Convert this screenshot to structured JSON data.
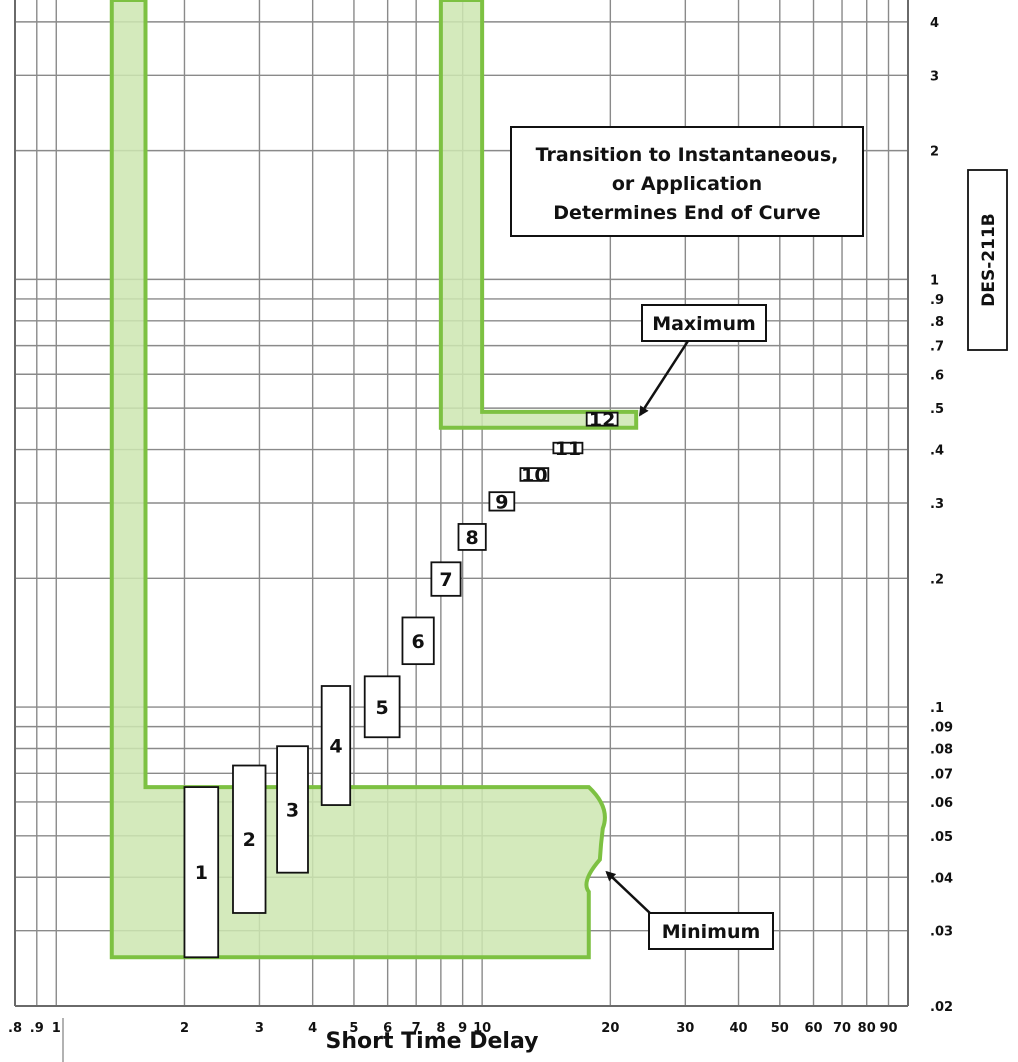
{
  "chart_data": {
    "type": "area",
    "title": "",
    "xlabel": "Short Time Delay",
    "ylabel": "",
    "x_scale": "log",
    "y_scale": "log",
    "xlim": [
      0.8,
      100
    ],
    "ylim": [
      0.02,
      4.5
    ],
    "grid": true,
    "x_ticks": [
      {
        "v": 0.8,
        "label": ".8"
      },
      {
        "v": 0.9,
        "label": ".9"
      },
      {
        "v": 1,
        "label": "1"
      },
      {
        "v": 2,
        "label": "2"
      },
      {
        "v": 3,
        "label": "3"
      },
      {
        "v": 4,
        "label": "4"
      },
      {
        "v": 5,
        "label": "5"
      },
      {
        "v": 6,
        "label": "6"
      },
      {
        "v": 7,
        "label": "7"
      },
      {
        "v": 8,
        "label": "8"
      },
      {
        "v": 9,
        "label": "9"
      },
      {
        "v": 10,
        "label": "10"
      },
      {
        "v": 20,
        "label": "20"
      },
      {
        "v": 30,
        "label": "30"
      },
      {
        "v": 40,
        "label": "40"
      },
      {
        "v": 50,
        "label": "50"
      },
      {
        "v": 60,
        "label": "60"
      },
      {
        "v": 70,
        "label": "70"
      },
      {
        "v": 80,
        "label": "80"
      },
      {
        "v": 90,
        "label": "90"
      }
    ],
    "y_ticks": [
      {
        "v": 4,
        "label": "4"
      },
      {
        "v": 3,
        "label": "3"
      },
      {
        "v": 2,
        "label": "2"
      },
      {
        "v": 1,
        "label": "1"
      },
      {
        "v": 0.9,
        "label": ".9"
      },
      {
        "v": 0.8,
        "label": ".8"
      },
      {
        "v": 0.7,
        "label": ".7"
      },
      {
        "v": 0.6,
        "label": ".6"
      },
      {
        "v": 0.5,
        "label": ".5"
      },
      {
        "v": 0.4,
        "label": ".4"
      },
      {
        "v": 0.3,
        "label": ".3"
      },
      {
        "v": 0.2,
        "label": ".2"
      },
      {
        "v": 0.1,
        "label": ".1"
      },
      {
        "v": 0.09,
        "label": ".09"
      },
      {
        "v": 0.08,
        "label": ".08"
      },
      {
        "v": 0.07,
        "label": ".07"
      },
      {
        "v": 0.06,
        "label": ".06"
      },
      {
        "v": 0.05,
        "label": ".05"
      },
      {
        "v": 0.04,
        "label": ".04"
      },
      {
        "v": 0.03,
        "label": ".03"
      },
      {
        "v": 0.02,
        "label": ".02"
      }
    ],
    "series": [
      {
        "type": "band",
        "boundary": [
          [
            1.35,
            4.5
          ],
          [
            1.62,
            4.5
          ],
          [
            1.62,
            0.065
          ],
          [
            17.8,
            0.065
          ],
          [
            19.2,
            0.052
          ],
          [
            18.9,
            0.044
          ],
          [
            17.8,
            0.037
          ],
          [
            17.8,
            0.026
          ],
          [
            1.35,
            0.026
          ]
        ]
      },
      {
        "type": "band",
        "boundary": [
          [
            8.0,
            4.5
          ],
          [
            10.0,
            4.5
          ],
          [
            10.0,
            0.49
          ],
          [
            23.0,
            0.49
          ],
          [
            23.0,
            0.45
          ],
          [
            8.0,
            0.45
          ]
        ]
      }
    ],
    "settings": [
      {
        "label": "1",
        "x_range": [
          2.0,
          2.4
        ],
        "y_range": [
          0.026,
          0.065
        ]
      },
      {
        "label": "2",
        "x_range": [
          2.6,
          3.1
        ],
        "y_range": [
          0.033,
          0.073
        ]
      },
      {
        "label": "3",
        "x_range": [
          3.3,
          3.9
        ],
        "y_range": [
          0.041,
          0.081
        ]
      },
      {
        "label": "4",
        "x_range": [
          4.2,
          4.9
        ],
        "y_range": [
          0.059,
          0.112
        ]
      },
      {
        "label": "5",
        "x_range": [
          5.3,
          6.4
        ],
        "y_range": [
          0.085,
          0.118
        ]
      },
      {
        "label": "6",
        "x_range": [
          6.5,
          7.7
        ],
        "y_range": [
          0.126,
          0.162
        ]
      },
      {
        "label": "7",
        "x_range": [
          7.6,
          8.9
        ],
        "y_range": [
          0.182,
          0.218
        ]
      },
      {
        "label": "8",
        "x_range": [
          8.8,
          10.2
        ],
        "y_range": [
          0.233,
          0.268
        ]
      },
      {
        "label": "9",
        "x_range": [
          10.4,
          11.9
        ],
        "y_range": [
          0.288,
          0.318
        ]
      },
      {
        "label": "10",
        "x_range": [
          12.3,
          14.3
        ],
        "y_range": [
          0.338,
          0.362
        ]
      },
      {
        "label": "11",
        "x_range": [
          14.7,
          17.2
        ],
        "y_range": [
          0.392,
          0.415
        ]
      },
      {
        "label": "12",
        "x_range": [
          17.6,
          20.8
        ],
        "y_range": [
          0.455,
          0.488
        ]
      }
    ],
    "annotations": [
      {
        "text_lines": [
          "Transition to Instantaneous,",
          "or Application",
          "Determines End of Curve"
        ]
      },
      {
        "text": "Maximum",
        "arrow_to": [
          22.5,
          0.472
        ]
      },
      {
        "text": "Minimum",
        "arrow_to": [
          19.0,
          0.042
        ]
      }
    ],
    "doc_id": "DES-211B"
  }
}
